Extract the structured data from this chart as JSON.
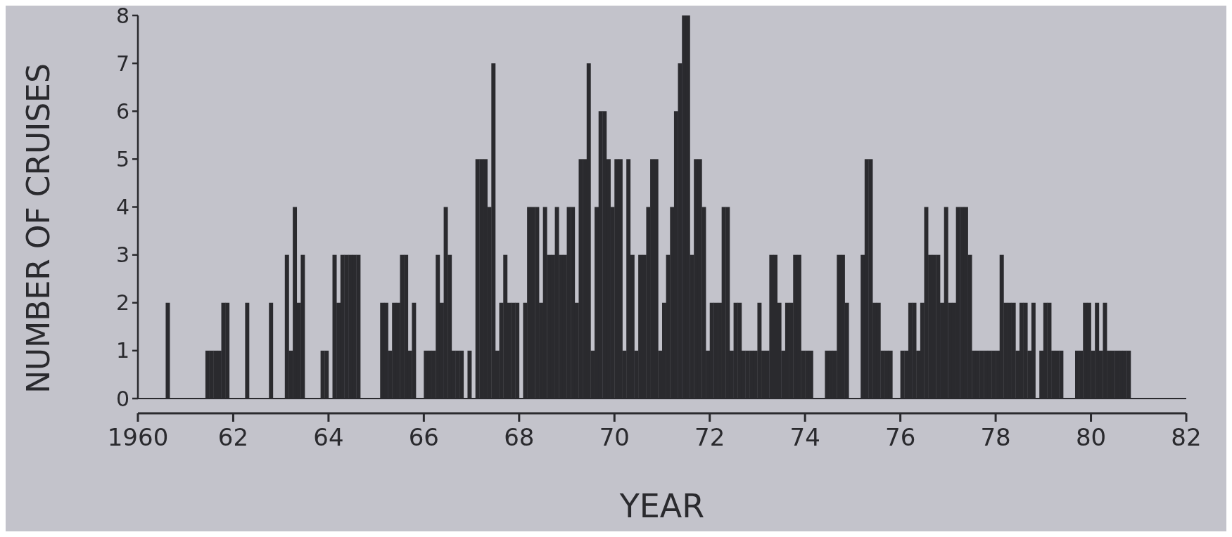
{
  "chart_data": {
    "type": "histogram",
    "xlabel": "YEAR",
    "ylabel": "NUMBER OF CRUISES",
    "color": "#2a2a2e",
    "bins": [
      1960,
      1960.083,
      1960.167,
      1960.25,
      1960.333,
      1960.417,
      1960.5,
      1960.583,
      1960.667,
      1960.75,
      1960.833,
      1960.917,
      1961,
      1961.083,
      1961.167,
      1961.25,
      1961.333,
      1961.417,
      1961.5,
      1961.583,
      1961.667,
      1961.75,
      1961.833,
      1961.917,
      1962,
      1962.083,
      1962.167,
      1962.25,
      1962.333,
      1962.417,
      1962.5,
      1962.583,
      1962.667,
      1962.75,
      1962.833,
      1962.917,
      1963,
      1963.083,
      1963.167,
      1963.25,
      1963.333,
      1963.417,
      1963.5,
      1963.583,
      1963.667,
      1963.75,
      1963.833,
      1963.917,
      1964,
      1964.083,
      1964.167,
      1964.25,
      1964.333,
      1964.417,
      1964.5,
      1964.583,
      1964.667,
      1964.75,
      1964.833,
      1964.917,
      1965,
      1965.083,
      1965.167,
      1965.25,
      1965.333,
      1965.417,
      1965.5,
      1965.583,
      1965.667,
      1965.75,
      1965.833,
      1965.917,
      1966,
      1966.083,
      1966.167,
      1966.25,
      1966.333,
      1966.417,
      1966.5,
      1966.583,
      1966.667,
      1966.75,
      1966.833,
      1966.917,
      1967,
      1967.083,
      1967.167,
      1967.25,
      1967.333,
      1967.417,
      1967.5,
      1967.583,
      1967.667,
      1967.75,
      1967.833,
      1967.917,
      1968,
      1968.083,
      1968.167,
      1968.25,
      1968.333,
      1968.417,
      1968.5,
      1968.583,
      1968.667,
      1968.75,
      1968.833,
      1968.917,
      1969,
      1969.083,
      1969.167,
      1969.25,
      1969.333,
      1969.417,
      1969.5,
      1969.583,
      1969.667,
      1969.75,
      1969.833,
      1969.917,
      1970,
      1970.083,
      1970.167,
      1970.25,
      1970.333,
      1970.417,
      1970.5,
      1970.583,
      1970.667,
      1970.75,
      1970.833,
      1970.917,
      1971,
      1971.083,
      1971.167,
      1971.25,
      1971.333,
      1971.417,
      1971.5,
      1971.583,
      1971.667,
      1971.75,
      1971.833,
      1971.917,
      1972,
      1972.083,
      1972.167,
      1972.25,
      1972.333,
      1972.417,
      1972.5,
      1972.583,
      1972.667,
      1972.75,
      1972.833,
      1972.917,
      1973,
      1973.083,
      1973.167,
      1973.25,
      1973.333,
      1973.417,
      1973.5,
      1973.583,
      1973.667,
      1973.75,
      1973.833,
      1973.917,
      1974,
      1974.083,
      1974.167,
      1974.25,
      1974.333,
      1974.417,
      1974.5,
      1974.583,
      1974.667,
      1974.75,
      1974.833,
      1974.917,
      1975,
      1975.083,
      1975.167,
      1975.25,
      1975.333,
      1975.417,
      1975.5,
      1975.583,
      1975.667,
      1975.75,
      1975.833,
      1975.917,
      1976,
      1976.083,
      1976.167,
      1976.25,
      1976.333,
      1976.417,
      1976.5,
      1976.583,
      1976.667,
      1976.75,
      1976.833,
      1976.917,
      1977,
      1977.083,
      1977.167,
      1977.25,
      1977.333,
      1977.417,
      1977.5,
      1977.583,
      1977.667,
      1977.75,
      1977.833,
      1977.917,
      1978,
      1978.083,
      1978.167,
      1978.25,
      1978.333,
      1978.417,
      1978.5,
      1978.583,
      1978.667,
      1978.75,
      1978.833,
      1978.917,
      1979,
      1979.083,
      1979.167,
      1979.25,
      1979.333,
      1979.417,
      1979.5,
      1979.583,
      1979.667,
      1979.75,
      1979.833,
      1979.917,
      1980,
      1980.083,
      1980.167,
      1980.25,
      1980.333,
      1980.417,
      1980.5,
      1980.583,
      1980.667,
      1980.75,
      1980.833
    ],
    "values": [
      0,
      0,
      0,
      0,
      0,
      0,
      0,
      2,
      0,
      0,
      0,
      0,
      0,
      0,
      0,
      0,
      0,
      1,
      1,
      1,
      1,
      2,
      2,
      0,
      0,
      0,
      0,
      2,
      0,
      0,
      0,
      0,
      0,
      2,
      0,
      0,
      0,
      3,
      1,
      4,
      2,
      3,
      0,
      0,
      0,
      0,
      1,
      1,
      0,
      3,
      2,
      3,
      3,
      3,
      3,
      3,
      0,
      0,
      0,
      0,
      0,
      2,
      2,
      1,
      2,
      2,
      3,
      3,
      1,
      2,
      0,
      0,
      1,
      1,
      1,
      3,
      2,
      4,
      3,
      1,
      1,
      1,
      0,
      1,
      0,
      5,
      5,
      5,
      4,
      7,
      1,
      2,
      3,
      2,
      2,
      2,
      0,
      2,
      4,
      4,
      4,
      2,
      4,
      3,
      3,
      4,
      3,
      3,
      4,
      4,
      2,
      5,
      5,
      7,
      1,
      4,
      6,
      6,
      5,
      4,
      5,
      5,
      1,
      5,
      3,
      1,
      3,
      3,
      4,
      5,
      5,
      1,
      2,
      3,
      4,
      6,
      7,
      8,
      8,
      3,
      5,
      5,
      4,
      1,
      2,
      2,
      2,
      4,
      4,
      1,
      2,
      2,
      1,
      1,
      1,
      1,
      2,
      1,
      1,
      3,
      3,
      2,
      1,
      2,
      2,
      3,
      3,
      1,
      1,
      1,
      0,
      0,
      0,
      1,
      1,
      1,
      3,
      3,
      2,
      0,
      0,
      0,
      3,
      5,
      5,
      2,
      2,
      1,
      1,
      1,
      0,
      0,
      1,
      1,
      2,
      2,
      1,
      2,
      4,
      3,
      3,
      3,
      2,
      4,
      2,
      2,
      4,
      4,
      4,
      3,
      1,
      1,
      1,
      1,
      1,
      1,
      1,
      3,
      2,
      2,
      2,
      1,
      2,
      2,
      1,
      2,
      0,
      1,
      2,
      2,
      1,
      1,
      1,
      0,
      0,
      0,
      1,
      1,
      2,
      2,
      1,
      2,
      1,
      2,
      1,
      1,
      1,
      1,
      1,
      1
    ],
    "xlim": [
      1960,
      1982
    ],
    "xticks": [
      1960,
      {
        "value": 1962,
        "label": "62"
      },
      {
        "value": 1964,
        "label": "64"
      },
      {
        "value": 1966,
        "label": "66"
      },
      {
        "value": 1968,
        "label": "68"
      },
      {
        "value": 1970,
        "label": "70"
      },
      {
        "value": 1972,
        "label": "72"
      },
      {
        "value": 1974,
        "label": "74"
      },
      {
        "value": 1976,
        "label": "76"
      },
      {
        "value": 1978,
        "label": "78"
      },
      {
        "value": 1980,
        "label": "80"
      },
      {
        "value": 1982,
        "label": "82"
      }
    ],
    "ylim": [
      0,
      8
    ],
    "yticks": [
      0,
      1,
      2,
      3,
      4,
      5,
      6,
      7,
      8
    ],
    "grid": false
  }
}
